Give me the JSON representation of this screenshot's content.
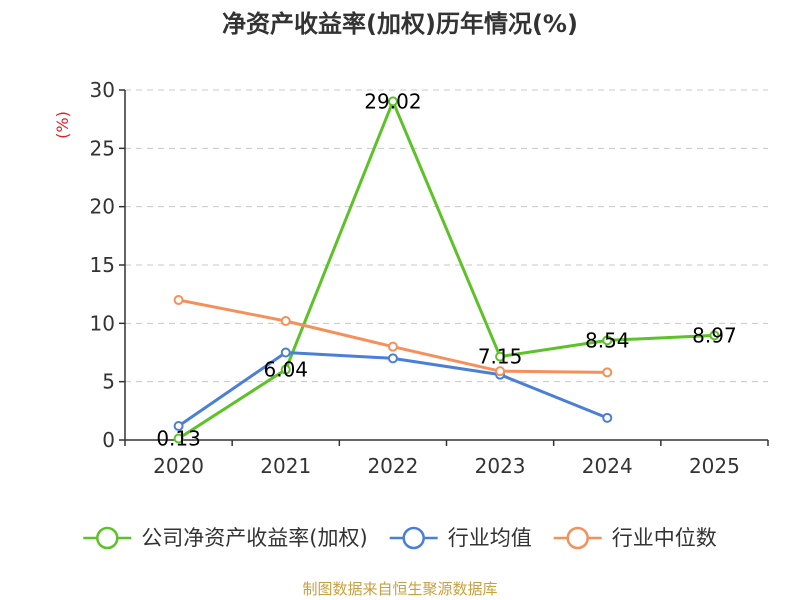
{
  "chart_data": {
    "type": "line",
    "title": "净资产收益率(加权)历年情况(%)",
    "ylabel": "(%)",
    "xlabel": "",
    "ylim": [
      0,
      30
    ],
    "yticks": [
      0,
      5,
      10,
      15,
      20,
      25,
      30
    ],
    "categories": [
      "2020",
      "2021",
      "2022",
      "2023",
      "2024",
      "2025"
    ],
    "grid": true,
    "legend_position": "bottom",
    "series": [
      {
        "name": "公司净资产收益率(加权)",
        "color": "#5cc228",
        "values": [
          0.13,
          6.04,
          29.02,
          7.15,
          8.54,
          8.97
        ],
        "labels": [
          "0.13",
          "6.04",
          "29.02",
          "7.15",
          "8.54",
          "8.97"
        ]
      },
      {
        "name": "行业均值",
        "color": "#4a7fd8",
        "values": [
          1.2,
          7.5,
          7.0,
          5.6,
          1.9,
          null
        ]
      },
      {
        "name": "行业中位数",
        "color": "#f5905a",
        "values": [
          12.0,
          10.2,
          8.0,
          5.9,
          5.8,
          null
        ]
      }
    ],
    "source": "制图数据来自恒生聚源数据库"
  }
}
